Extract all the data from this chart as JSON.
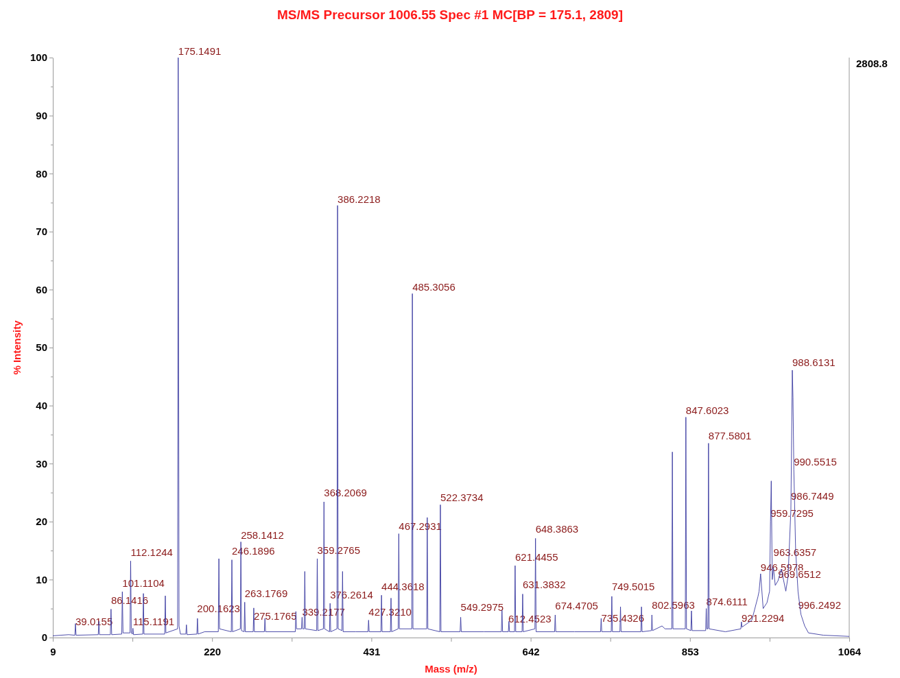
{
  "chart_data": {
    "type": "line",
    "title": "MS/MS Precursor 1006.55 Spec #1 MC[BP = 175.1, 2809]",
    "xlabel": "Mass (m/z)",
    "ylabel": "% Intensity",
    "xlim": [
      9,
      1064
    ],
    "xticks": [
      9,
      {
        "value": 114.5,
        "label": null
      },
      220,
      {
        "value": 325.5,
        "label": null
      },
      431,
      {
        "value": 536.5,
        "label": null
      },
      642,
      {
        "value": 747.5,
        "label": null
      },
      853,
      {
        "value": 958.5,
        "label": null
      },
      1064
    ],
    "ylim": [
      0,
      100
    ],
    "yticks": [
      0,
      {
        "value": 5,
        "label": null
      },
      10,
      {
        "value": 15,
        "label": null
      },
      20,
      {
        "value": 25,
        "label": null
      },
      30,
      {
        "value": 35,
        "label": null
      },
      40,
      {
        "value": 45,
        "label": null
      },
      50,
      {
        "value": 55,
        "label": null
      },
      60,
      {
        "value": 65,
        "label": null
      },
      70,
      {
        "value": 75,
        "label": null
      },
      80,
      {
        "value": 85,
        "label": null
      },
      90,
      {
        "value": 95,
        "label": null
      },
      100
    ],
    "series": [
      {
        "color": "#3a3aa0",
        "x": [
          9,
          30,
          38.2,
          39,
          39.8,
          69.2,
          70,
          70.8,
          85.2,
          86.1,
          87,
          100.3,
          101.1,
          102,
          111.3,
          112.1,
          113,
          114.4,
          115.1,
          115.9,
          128.2,
          129,
          129.8,
          157.2,
          158,
          158.8,
          174.3,
          175.1,
          176.2,
          178,
          185.2,
          186,
          186.8,
          199.8,
          200.6,
          201.4,
          210,
          228.2,
          229,
          229.8,
          245.4,
          246.2,
          247,
          257.4,
          258.1,
          258.9,
          262.4,
          263.2,
          264,
          274.4,
          275.2,
          276,
          289.2,
          290,
          290.8,
          330.2,
          331,
          331.8,
          338.4,
          339.2,
          340,
          342,
          342.8,
          343.6,
          358.5,
          359.3,
          360.1,
          367.4,
          368.2,
          369,
          375.5,
          376.3,
          377.1,
          385.4,
          386.2,
          387,
          392,
          392.8,
          393.6,
          410,
          426.5,
          427.3,
          428.1,
          443.6,
          444.4,
          445.2,
          456.2,
          457,
          457.8,
          466.5,
          467.3,
          468.1,
          484.5,
          485.3,
          486.1,
          504.2,
          505,
          505.8,
          521.6,
          522.4,
          523.2,
          548.5,
          549.3,
          550.1,
          580,
          603.2,
          604,
          604.8,
          612.4,
          613.2,
          614,
          620.6,
          621.4,
          622.2,
          630.6,
          631.4,
          632.2,
          647.6,
          648.4,
          649.2,
          673.7,
          674.5,
          675.3,
          700,
          734.6,
          735.4,
          736.2,
          748.7,
          749.5,
          750.3,
          760.2,
          761,
          761.8,
          788,
          788.8,
          789.6,
          802,
          802.6,
          803.4,
          816,
          820,
          828.9,
          829.7,
          830.5,
          846.8,
          847.6,
          848.4,
          854.2,
          855,
          855.8,
          873.8,
          874.6,
          875.4,
          876.8,
          877.6,
          878.4,
          900,
          920.4,
          921.2,
          922,
          935,
          943,
          944.6,
          946.6,
          950,
          955,
          958.5,
          959.7,
          960.7,
          962,
          963.6,
          966,
          969.7,
          974,
          980,
          983,
          986.7,
          988.6,
          989.5,
          990.6,
          993,
          996.2,
          1000,
          1005,
          1010,
          1030,
          1064
        ],
        "values": [
          0.3,
          0.5,
          0.4,
          2.4,
          0.4,
          0.5,
          2.8,
          0.5,
          0.5,
          4.9,
          0.5,
          0.6,
          7.9,
          0.8,
          0.8,
          13.2,
          0.8,
          0.6,
          1.6,
          0.5,
          0.6,
          7.6,
          0.6,
          0.6,
          7.2,
          0.8,
          1.5,
          100,
          2,
          0.6,
          0.6,
          2.2,
          0.5,
          0.6,
          3.3,
          0.6,
          1,
          1,
          13.6,
          1.5,
          1,
          13.4,
          1,
          1.5,
          16.5,
          1.2,
          1,
          6.1,
          1,
          1,
          5.1,
          1,
          1,
          3.3,
          1,
          1,
          4.5,
          1.5,
          1.5,
          3.5,
          1.5,
          1.5,
          11.4,
          1.5,
          1.2,
          13.6,
          1.2,
          1.5,
          23.4,
          1.5,
          1,
          5.9,
          1,
          1.5,
          74.5,
          1.5,
          1.2,
          11.4,
          1,
          1,
          1,
          3,
          1,
          1,
          7.3,
          1,
          1,
          6.8,
          1,
          1.5,
          17.9,
          1.5,
          1.5,
          59.3,
          1.5,
          1.5,
          20.7,
          1.5,
          1,
          22.9,
          1,
          1,
          3.5,
          1,
          1,
          1,
          4.7,
          1,
          1,
          2.8,
          1,
          1,
          12.4,
          1,
          1,
          7.5,
          1,
          1.5,
          17.1,
          1,
          1,
          3.9,
          1,
          1,
          1,
          3.3,
          1,
          1,
          7.1,
          1,
          1,
          5.3,
          1,
          1,
          5.3,
          1,
          1.2,
          3.9,
          1.2,
          2,
          1.5,
          1.5,
          32,
          1.5,
          1.5,
          38,
          1.5,
          1.2,
          4.6,
          1.2,
          1.2,
          5,
          1.5,
          1.5,
          33.5,
          1.5,
          1,
          1.5,
          2.7,
          1.8,
          3,
          7,
          8,
          11,
          5,
          6,
          8,
          20,
          27,
          10,
          12,
          9,
          9.8,
          11.8,
          8,
          10.6,
          22,
          46.1,
          41.4,
          29,
          15,
          7.9,
          4,
          2,
          0.8,
          0.4,
          0.2
        ]
      }
    ],
    "annotations": [
      {
        "text": "175.1491",
        "x": 175.1491,
        "y": 100
      },
      {
        "text": "386.2218",
        "x": 386.2218,
        "y": 74.5
      },
      {
        "text": "485.3056",
        "x": 485.3056,
        "y": 59.3
      },
      {
        "text": "988.6131",
        "x": 988.6131,
        "y": 46.3
      },
      {
        "text": "847.6023",
        "x": 847.6023,
        "y": 38.1
      },
      {
        "text": "877.5801",
        "x": 877.5801,
        "y": 33.7
      },
      {
        "text": "990.5515",
        "x": 990.5515,
        "y": 29.2
      },
      {
        "text": "986.7449",
        "x": 986.7449,
        "y": 23.3
      },
      {
        "text": "368.2069",
        "x": 368.2069,
        "y": 23.9
      },
      {
        "text": "522.3734",
        "x": 522.3734,
        "y": 23
      },
      {
        "text": "959.7295",
        "x": 959.7295,
        "y": 20.3
      },
      {
        "text": "467.2931",
        "x": 467.2931,
        "y": 18.1
      },
      {
        "text": "648.3863",
        "x": 648.3863,
        "y": 17.6
      },
      {
        "text": "258.1412",
        "x": 258.1412,
        "y": 16.5
      },
      {
        "text": "246.1896",
        "x": 246.1896,
        "y": 13.8
      },
      {
        "text": "112.1244",
        "x": 112.1244,
        "y": 13.6
      },
      {
        "text": "359.2765",
        "x": 359.2765,
        "y": 13.9
      },
      {
        "text": "621.4455",
        "x": 621.4455,
        "y": 12.8
      },
      {
        "text": "963.6357",
        "x": 963.6357,
        "y": 13.6
      },
      {
        "text": "946.5978",
        "x": 946.5978,
        "y": 11
      },
      {
        "text": "101.1104",
        "x": 101.1104,
        "y": 8.3
      },
      {
        "text": "444.3618",
        "x": 444.3618,
        "y": 7.7
      },
      {
        "text": "631.3832",
        "x": 631.3832,
        "y": 8
      },
      {
        "text": "749.5015",
        "x": 749.5015,
        "y": 7.7
      },
      {
        "text": "969.6512",
        "x": 969.6512,
        "y": 9.8
      },
      {
        "text": "263.1769",
        "x": 263.1769,
        "y": 6.5
      },
      {
        "text": "376.2614",
        "x": 376.2614,
        "y": 6.3
      },
      {
        "text": "86.1416",
        "x": 86.1416,
        "y": 5.3
      },
      {
        "text": "996.2492",
        "x": 996.2492,
        "y": 4.5
      },
      {
        "text": "874.6111",
        "x": 874.6111,
        "y": 5.1
      },
      {
        "text": "674.4705",
        "x": 674.4705,
        "y": 4.4
      },
      {
        "text": "549.2975",
        "x": 549.2975,
        "y": 4.1
      },
      {
        "text": "802.5963",
        "x": 802.5963,
        "y": 4.5
      },
      {
        "text": "200.1623",
        "x": 200.1623,
        "y": 3.9
      },
      {
        "text": "275.1765",
        "x": 275.1765,
        "y": 2.6
      },
      {
        "text": "339.2177",
        "x": 339.2177,
        "y": 3.3
      },
      {
        "text": "427.3210",
        "x": 427.321,
        "y": 3.3
      },
      {
        "text": "612.4523",
        "x": 612.4523,
        "y": 2.1
      },
      {
        "text": "735.4326",
        "x": 735.4326,
        "y": 2.2
      },
      {
        "text": "921.2294",
        "x": 921.2294,
        "y": 2.2
      },
      {
        "text": "115.1191",
        "x": 115.1191,
        "y": 1.7
      },
      {
        "text": "39.0155",
        "x": 39.0155,
        "y": 1.7
      },
      "2808.8"
    ]
  }
}
